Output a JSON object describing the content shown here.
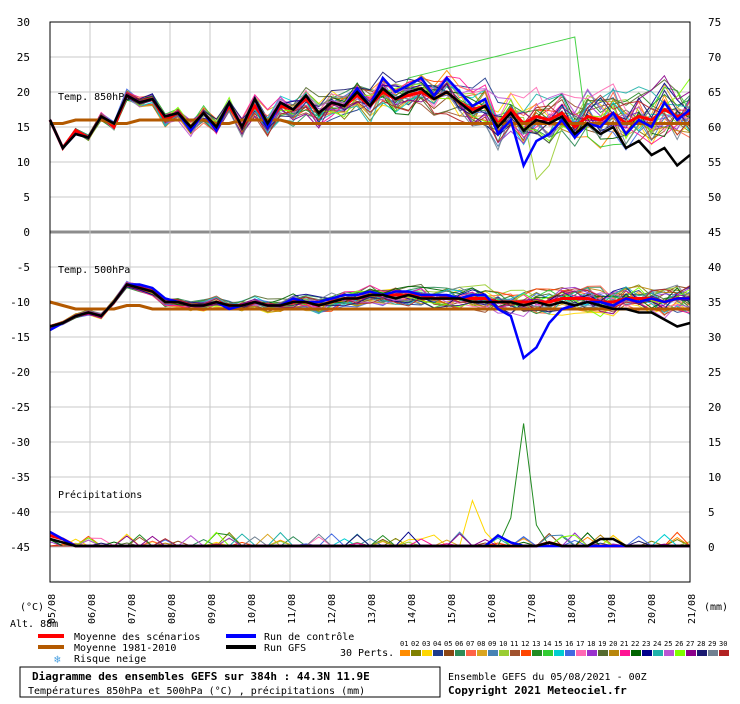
{
  "chart_data": {
    "type": "line",
    "x_dates": [
      "06/08",
      "07/08",
      "08/08",
      "09/08",
      "10/08",
      "11/08",
      "12/08",
      "13/08",
      "14/08",
      "15/08",
      "16/08",
      "17/08",
      "18/08",
      "19/08",
      "20/08",
      "21/08"
    ],
    "x_start_label": "05/08",
    "left_ticks": [
      "30",
      "25",
      "20",
      "15",
      "10",
      "5",
      "0",
      "-5",
      "-10",
      "-15",
      "-20",
      "-25",
      "-30",
      "-35",
      "-40",
      "-45"
    ],
    "right_ticks": [
      "75",
      "70",
      "65",
      "60",
      "55",
      "50",
      "45",
      "40",
      "35",
      "30",
      "25",
      "20",
      "15",
      "10",
      "5",
      "0"
    ],
    "left_axis_unit": "(°C)",
    "right_axis_unit": "(mm)",
    "altitude_label": "Alt. 88m",
    "panels": [
      {
        "label": "Temp. 850hPa",
        "unit": "°C"
      },
      {
        "label": "Temp. 500hPa",
        "unit": "°C"
      },
      {
        "label": "Précipitations",
        "unit": "mm"
      }
    ],
    "series": [
      {
        "name": "Moyenne des scénarios",
        "color": "#ff0000",
        "t850": [
          16,
          12,
          14.5,
          13.5,
          16.5,
          15,
          19.5,
          18.5,
          19,
          16,
          17,
          15,
          17,
          15,
          18,
          15,
          18,
          15.5,
          18,
          17.5,
          19,
          17,
          18.5,
          18,
          19.5,
          18,
          20,
          19,
          19.5,
          20,
          19,
          20,
          18.5,
          17.5,
          18,
          15.5,
          17.5,
          15.5,
          16.5,
          16,
          17,
          15,
          16.5,
          16,
          17,
          15.5,
          16.5,
          16,
          17.5,
          16.5,
          17
        ],
        "t500": [
          -13.5,
          -13,
          -12,
          -11.5,
          -12,
          -10,
          -7.5,
          -8,
          -8.5,
          -10,
          -10,
          -10.5,
          -10.5,
          -10,
          -10.5,
          -10.5,
          -10,
          -10.5,
          -10.5,
          -10,
          -10,
          -10.5,
          -10,
          -9.5,
          -9.5,
          -9,
          -9,
          -9,
          -9,
          -9,
          -9.5,
          -9.5,
          -9.5,
          -9.5,
          -9.5,
          -10,
          -10,
          -10,
          -10,
          -10,
          -9.5,
          -9.5,
          -9.5,
          -10,
          -10,
          -9.5,
          -9.5,
          -9.5,
          -10,
          -9.5,
          -9.5
        ],
        "precip": [
          1.5,
          1,
          0,
          0,
          0,
          0,
          0,
          0,
          0,
          0,
          0,
          0,
          0,
          0,
          0,
          0,
          0,
          0,
          0,
          0,
          0,
          0,
          0,
          0,
          0,
          0,
          0,
          0,
          0,
          0,
          0,
          0,
          0,
          0,
          0,
          0,
          0,
          0,
          0,
          0.5,
          0,
          0,
          0,
          0,
          0,
          0,
          0,
          0,
          0,
          0,
          0
        ]
      },
      {
        "name": "Moyenne 1981-2010",
        "color": "#b35900",
        "t850": [
          15.5,
          15.5,
          16,
          16,
          16,
          15.5,
          15.5,
          16,
          16,
          16,
          16,
          16,
          16,
          15.5,
          15.5,
          16,
          16,
          16,
          16,
          15.5,
          15.5,
          15.5,
          15.5,
          15.5,
          15.5,
          15.5,
          15.5,
          15.5,
          15.5,
          15.5,
          15.5,
          15.5,
          15.5,
          15.5,
          15.5,
          15.5,
          15.5,
          15.5,
          15.5,
          15.5,
          15.5,
          15.5,
          15.5,
          15.5,
          15.5,
          15.5,
          15.5,
          15.5,
          15.5,
          15.5,
          15.5
        ],
        "t500": [
          -10,
          -10.5,
          -11,
          -11,
          -11,
          -11,
          -10.5,
          -10.5,
          -11,
          -11,
          -11,
          -11,
          -11,
          -11,
          -11,
          -11,
          -11,
          -11,
          -11,
          -11,
          -11,
          -11,
          -11,
          -11,
          -11,
          -11,
          -11,
          -11,
          -11,
          -11,
          -11,
          -11,
          -11,
          -11,
          -11,
          -11,
          -11,
          -11,
          -11,
          -11,
          -11,
          -11,
          -11,
          -11,
          -11,
          -11,
          -11,
          -11,
          -11,
          -11,
          -11
        ]
      },
      {
        "name": "Run de contrôle",
        "color": "#0000ff",
        "t850": [
          16,
          12,
          14,
          13.5,
          16.5,
          15.5,
          19.5,
          18.5,
          19,
          16.5,
          17,
          14.5,
          17,
          14.5,
          18.5,
          15,
          19,
          15,
          18.5,
          17.5,
          19.5,
          17,
          18.5,
          18,
          20.5,
          18,
          22,
          20,
          21,
          22,
          19.5,
          22,
          20,
          18,
          19,
          14,
          16,
          9.5,
          13,
          14,
          16,
          13.5,
          15.5,
          15,
          17,
          14,
          16,
          15,
          18.5,
          16,
          17.5
        ],
        "t500": [
          -14,
          -13,
          -12,
          -11.5,
          -12,
          -10,
          -7.5,
          -7.5,
          -8,
          -9.5,
          -10,
          -10.5,
          -10.5,
          -10,
          -11,
          -10.5,
          -10,
          -10.5,
          -10.5,
          -9.5,
          -10,
          -10,
          -9.5,
          -9,
          -9,
          -8.5,
          -9,
          -8.5,
          -8.5,
          -9,
          -9,
          -9,
          -9.5,
          -9,
          -9,
          -11,
          -12,
          -18,
          -16.5,
          -13,
          -11,
          -10.5,
          -10,
          -10,
          -10.5,
          -9.5,
          -10,
          -9.5,
          -10,
          -9.5,
          -9.5
        ],
        "precip": [
          2,
          1,
          0,
          0,
          0,
          0,
          0,
          0,
          0,
          0,
          0,
          0,
          0,
          0,
          0,
          0,
          0,
          0,
          0,
          0,
          0,
          0,
          0,
          0,
          0,
          0,
          0,
          0,
          0,
          0,
          0,
          0,
          0,
          0,
          0,
          1.5,
          0.5,
          0,
          0,
          0,
          0,
          0,
          0,
          0,
          0,
          0,
          0,
          0,
          0,
          0,
          0
        ]
      },
      {
        "name": "Run GFS",
        "color": "#000000",
        "t850": [
          16,
          12,
          14,
          13.5,
          16.5,
          15.5,
          19.5,
          18.5,
          19,
          16.5,
          17,
          15,
          17,
          15,
          18.5,
          15,
          19,
          15.5,
          18.5,
          17.5,
          19.5,
          17,
          18.5,
          18,
          20,
          18,
          20.5,
          19,
          20,
          20.5,
          19,
          20,
          18.5,
          17,
          18,
          15,
          17,
          14.5,
          16,
          15.5,
          16.5,
          14,
          15.5,
          14,
          15,
          12,
          13,
          11,
          12,
          9.5,
          11
        ],
        "t500": [
          -13.5,
          -13,
          -12,
          -11.5,
          -12,
          -10,
          -7.5,
          -8,
          -8.5,
          -10,
          -10,
          -10.5,
          -10.5,
          -10,
          -10.5,
          -10.5,
          -10,
          -10.5,
          -10.5,
          -10,
          -10,
          -10.5,
          -10,
          -9.5,
          -9.5,
          -9,
          -9,
          -9.5,
          -9,
          -9.5,
          -9.5,
          -9.5,
          -9.5,
          -10,
          -10,
          -10,
          -10,
          -10.5,
          -10,
          -10.5,
          -10,
          -10.5,
          -10,
          -10.5,
          -11,
          -11,
          -11.5,
          -11.5,
          -12.5,
          -13.5,
          -13
        ],
        "precip": [
          1,
          0.5,
          0,
          0,
          0,
          0,
          0,
          0,
          0,
          0,
          0,
          0,
          0,
          0,
          0,
          0,
          0,
          0,
          0,
          0,
          0,
          0,
          0,
          0,
          0,
          0,
          0,
          0,
          0,
          0,
          0,
          0,
          0,
          0,
          0,
          0,
          0,
          0,
          0,
          0.5,
          0,
          0,
          0,
          1,
          1,
          0,
          0,
          0,
          0,
          0,
          0
        ]
      }
    ],
    "perturbations": {
      "label": "30 Perts.",
      "codes": [
        "01",
        "02",
        "03",
        "04",
        "05",
        "06",
        "07",
        "08",
        "09",
        "10",
        "11",
        "12",
        "13",
        "14",
        "15",
        "16",
        "17",
        "18",
        "19",
        "20",
        "21",
        "22",
        "23",
        "24",
        "25",
        "26",
        "27",
        "28",
        "29",
        "30"
      ],
      "colors": [
        "#ff8c00",
        "#808000",
        "#ffd700",
        "#1e3c8c",
        "#8b4513",
        "#2e8b57",
        "#ff6347",
        "#daa520",
        "#4682b4",
        "#9acd32",
        "#a0522d",
        "#ff4500",
        "#228b22",
        "#32cd32",
        "#00ced1",
        "#4169e1",
        "#ff69b4",
        "#9932cc",
        "#556b2f",
        "#b8860b",
        "#ff1493",
        "#006400",
        "#00008b",
        "#20b2aa",
        "#ba55d3",
        "#7fff00",
        "#8b008b",
        "#191970",
        "#708090",
        "#b22222"
      ],
      "highlights": [
        {
          "t850_peak": 28,
          "t850_min": 7.5
        },
        {
          "t500_min": -17.5
        },
        {
          "precip_peak": 17.5,
          "precip_secondary": [
            6.5,
            5,
            4.5
          ]
        }
      ]
    },
    "legend": {
      "items": [
        "Moyenne des scénarios",
        "Moyenne 1981-2010",
        "Risque neige",
        "Run de contrôle",
        "Run GFS"
      ]
    },
    "title": "Diagramme des ensembles GEFS sur 384h : 44.3N 11.9E",
    "subtitle": "Températures 850hPa et 500hPa (°C) , précipitations (mm)",
    "run_info": "Ensemble GEFS du 05/08/2021 - 00Z",
    "copyright": "Copyright 2021 Meteociel.fr"
  }
}
